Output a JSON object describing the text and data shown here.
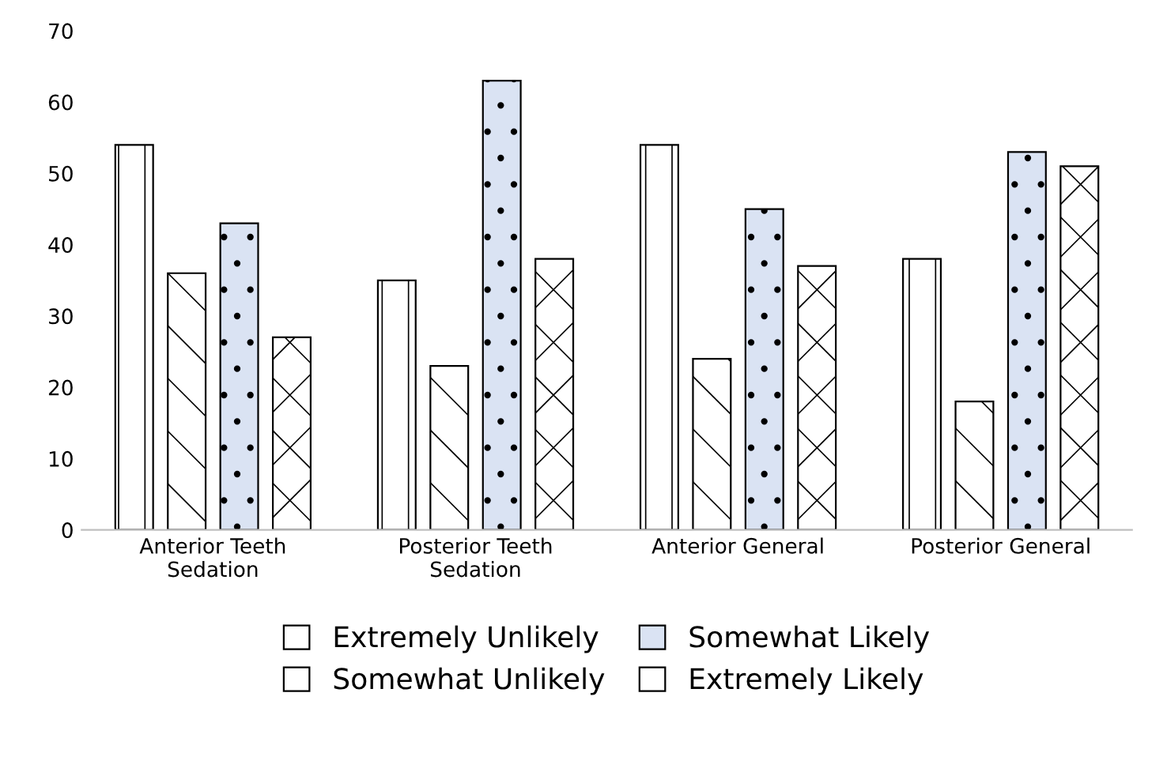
{
  "chart_data": {
    "type": "bar",
    "categories": [
      "Anterior Teeth\nSedation",
      "Posterior Teeth\nSedation",
      "Anterior General",
      "Posterior General"
    ],
    "series": [
      {
        "name": "Extremely Unlikely",
        "color": "#ffffff",
        "values": [
          54,
          35,
          54,
          38
        ]
      },
      {
        "name": "Somewhat Unlikely",
        "color": "#ffffff",
        "values": [
          36,
          23,
          24,
          18
        ]
      },
      {
        "name": "Somewhat Likely",
        "color": "#dae3f3",
        "values": [
          43,
          63,
          45,
          53
        ]
      },
      {
        "name": "Extremely Likely",
        "color": "#ffffff",
        "values": [
          27,
          38,
          37,
          51
        ]
      }
    ],
    "ylim": [
      0,
      70
    ],
    "yticks": [
      0,
      10,
      20,
      30,
      40,
      50,
      60,
      70
    ],
    "grid": false,
    "legend": "bottom"
  }
}
